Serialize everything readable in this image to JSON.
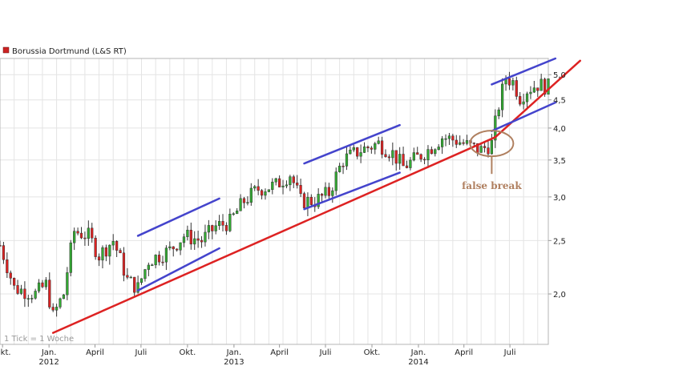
{
  "chart_data": {
    "type": "candlestick",
    "legend": {
      "label": "Borussia Dortmund (L&S RT)",
      "color": "#cc2222",
      "position": "top-left"
    },
    "footnote": "1 Tick = 1 Woche",
    "y_scale": "log",
    "ylim": [
      1.62,
      5.35
    ],
    "y_ticks": [
      {
        "value": 2.0,
        "label": "2,0"
      },
      {
        "value": 2.5,
        "label": "2,5"
      },
      {
        "value": 3.0,
        "label": "3,0"
      },
      {
        "value": 3.5,
        "label": "3,5"
      },
      {
        "value": 4.0,
        "label": "4,0"
      },
      {
        "value": 4.5,
        "label": "4,5"
      },
      {
        "value": 5.0,
        "label": "5,0"
      }
    ],
    "x_range": [
      "2011-09-26",
      "2014-09-15"
    ],
    "x_ticks": [
      {
        "date": "2011-10-01",
        "label": "Okt."
      },
      {
        "date": "2012-01-01",
        "label": "Jan.",
        "year": "2012"
      },
      {
        "date": "2012-04-01",
        "label": "April"
      },
      {
        "date": "2012-07-01",
        "label": "Juli"
      },
      {
        "date": "2012-10-01",
        "label": "Okt."
      },
      {
        "date": "2013-01-01",
        "label": "Jan.",
        "year": "2013"
      },
      {
        "date": "2013-04-01",
        "label": "April"
      },
      {
        "date": "2013-07-01",
        "label": "Juli"
      },
      {
        "date": "2013-10-01",
        "label": "Okt."
      },
      {
        "date": "2014-01-01",
        "label": "Jan.",
        "year": "2014"
      },
      {
        "date": "2014-04-01",
        "label": "April"
      },
      {
        "date": "2014-07-01",
        "label": "Juli"
      }
    ],
    "grid": true,
    "candle_up_color": "#33aa33",
    "candle_down_color": "#dd2222",
    "close_anchors": [
      [
        "2011-09-26",
        2.45
      ],
      [
        "2011-10-24",
        2.05
      ],
      [
        "2011-12-05",
        2.0
      ],
      [
        "2011-12-26",
        2.08
      ],
      [
        "2012-01-09",
        1.82
      ],
      [
        "2012-01-30",
        2.0
      ],
      [
        "2012-02-20",
        2.6
      ],
      [
        "2012-03-19",
        2.55
      ],
      [
        "2012-04-09",
        2.35
      ],
      [
        "2012-05-07",
        2.5
      ],
      [
        "2012-06-04",
        2.12
      ],
      [
        "2012-06-25",
        2.05
      ],
      [
        "2012-07-16",
        2.3
      ],
      [
        "2012-08-27",
        2.4
      ],
      [
        "2012-09-24",
        2.55
      ],
      [
        "2012-10-29",
        2.5
      ],
      [
        "2012-11-26",
        2.65
      ],
      [
        "2012-12-24",
        2.7
      ],
      [
        "2013-01-21",
        2.95
      ],
      [
        "2013-02-18",
        3.1
      ],
      [
        "2013-03-25",
        3.15
      ],
      [
        "2013-04-22",
        3.3
      ],
      [
        "2013-05-13",
        2.95
      ],
      [
        "2013-06-10",
        2.95
      ],
      [
        "2013-07-08",
        3.05
      ],
      [
        "2013-08-05",
        3.5
      ],
      [
        "2013-09-09",
        3.65
      ],
      [
        "2013-10-14",
        3.75
      ],
      [
        "2013-11-11",
        3.6
      ],
      [
        "2013-12-02",
        3.4
      ],
      [
        "2013-12-23",
        3.5
      ],
      [
        "2014-01-20",
        3.65
      ],
      [
        "2014-02-17",
        3.85
      ],
      [
        "2014-03-17",
        3.8
      ],
      [
        "2014-04-14",
        3.7
      ],
      [
        "2014-05-05",
        3.65
      ],
      [
        "2014-05-26",
        3.75
      ],
      [
        "2014-06-09",
        4.4
      ],
      [
        "2014-06-23",
        4.95
      ],
      [
        "2014-07-07",
        4.85
      ],
      [
        "2014-07-21",
        4.55
      ],
      [
        "2014-08-04",
        4.7
      ],
      [
        "2014-08-25",
        4.8
      ],
      [
        "2014-09-15",
        4.75
      ]
    ],
    "trendlines": [
      {
        "name": "support",
        "color": "#dd2222",
        "points": [
          [
            "2012-01-09",
            1.7
          ],
          [
            "2014-06-02",
            3.85
          ]
        ]
      },
      {
        "name": "support-extension",
        "color": "#dd2222",
        "points": [
          [
            "2014-06-02",
            3.85
          ],
          [
            "2014-11-17",
            5.3
          ]
        ]
      },
      {
        "name": "channel-bottom-1",
        "color": "#4444cc",
        "points": [
          [
            "2012-06-25",
            2.03
          ],
          [
            "2012-12-03",
            2.42
          ]
        ]
      },
      {
        "name": "channel-top-1",
        "color": "#4444cc",
        "points": [
          [
            "2012-06-25",
            2.55
          ],
          [
            "2012-12-03",
            2.98
          ]
        ]
      },
      {
        "name": "channel-bottom-2",
        "color": "#4444cc",
        "points": [
          [
            "2013-05-20",
            2.85
          ],
          [
            "2013-11-25",
            3.32
          ]
        ]
      },
      {
        "name": "channel-top-2",
        "color": "#4444cc",
        "points": [
          [
            "2013-05-20",
            3.45
          ],
          [
            "2013-11-25",
            4.05
          ]
        ]
      },
      {
        "name": "channel-bottom-3",
        "color": "#4444cc",
        "points": [
          [
            "2014-05-26",
            3.95
          ],
          [
            "2014-09-29",
            4.45
          ]
        ]
      },
      {
        "name": "channel-top-3",
        "color": "#4444cc",
        "points": [
          [
            "2014-05-26",
            4.8
          ],
          [
            "2014-09-29",
            5.35
          ]
        ]
      }
    ],
    "annotation": {
      "text": "false break",
      "date": "2014-05-26",
      "value": 3.75,
      "color": "#b08060"
    }
  }
}
